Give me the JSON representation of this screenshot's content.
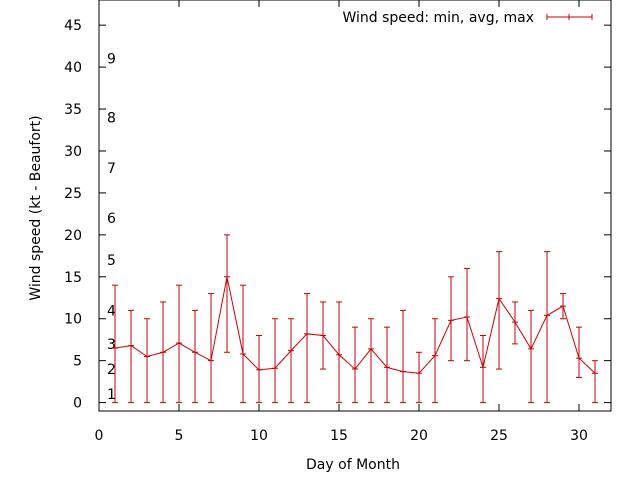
{
  "chart_data": {
    "type": "line",
    "title": "",
    "xlabel": "Day of Month",
    "ylabel": "Wind speed (kt - Beaufort)",
    "xlim": [
      0,
      32
    ],
    "ylim": [
      -1,
      48
    ],
    "x_ticks": [
      0,
      5,
      10,
      15,
      20,
      25,
      30
    ],
    "y_ticks": [
      0,
      5,
      10,
      15,
      20,
      25,
      30,
      35,
      40,
      45
    ],
    "grid": false,
    "legend_position": "top-right",
    "beaufort_labels": [
      {
        "label": "1",
        "y": 1
      },
      {
        "label": "2",
        "y": 4
      },
      {
        "label": "3",
        "y": 7
      },
      {
        "label": "4",
        "y": 11
      },
      {
        "label": "5",
        "y": 17
      },
      {
        "label": "6",
        "y": 22
      },
      {
        "label": "7",
        "y": 28
      },
      {
        "label": "8",
        "y": 34
      },
      {
        "label": "9",
        "y": 41
      }
    ],
    "series": [
      {
        "name": "Wind speed: min, avg, max",
        "color": "#cc0000",
        "x": [
          1,
          2,
          3,
          4,
          5,
          6,
          7,
          8,
          9,
          10,
          11,
          12,
          13,
          14,
          15,
          16,
          17,
          18,
          19,
          20,
          21,
          22,
          23,
          24,
          25,
          26,
          27,
          28,
          29,
          30,
          31
        ],
        "avg": [
          6.5,
          6.8,
          5.5,
          6,
          7.1,
          6,
          5,
          15,
          5.8,
          3.9,
          4.1,
          6.2,
          8.2,
          8,
          5.7,
          4,
          6.4,
          4.2,
          3.7,
          3.5,
          5.6,
          9.8,
          10.2,
          4.2,
          12.4,
          9.6,
          6.4,
          10.4,
          11.5,
          5.3,
          3.5
        ],
        "min": [
          0,
          0,
          0,
          0,
          0,
          0,
          0,
          6,
          0,
          0,
          0,
          0,
          0,
          4,
          0,
          0,
          0,
          0,
          0,
          0,
          0,
          5,
          5,
          0,
          4,
          7,
          0,
          0,
          10,
          3,
          0
        ],
        "max": [
          14,
          11,
          10,
          12,
          14,
          11,
          13,
          20,
          14,
          8,
          10,
          10,
          13,
          12,
          12,
          9,
          10,
          9,
          11,
          6,
          10,
          15,
          16,
          8,
          18,
          12,
          11,
          18,
          13,
          9,
          5
        ]
      }
    ]
  }
}
